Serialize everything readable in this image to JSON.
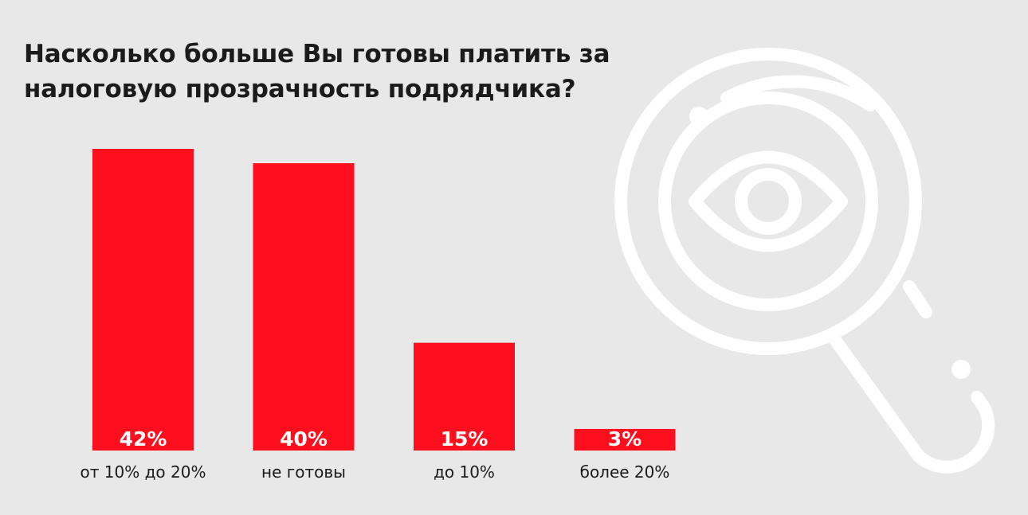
{
  "chart_data": {
    "type": "bar",
    "title": "Насколько больше Вы готовы платить за налоговую прозрачность подрядчика?",
    "categories": [
      "от 10% до 20%",
      "не готовы",
      "до 10%",
      "более 20%"
    ],
    "values": [
      42,
      40,
      15,
      3
    ],
    "value_labels": [
      "42%",
      "40%",
      "15%",
      "3%"
    ],
    "unit": "%",
    "xlabel": "",
    "ylabel": "",
    "ylim": [
      0,
      42
    ],
    "grid": false,
    "legend": "none",
    "colors": {
      "bar": "#ff0f1e",
      "background": "#e8e8e8",
      "text": "#1b1b1b",
      "value_text": "#ffffff",
      "decoration": "#ffffff"
    }
  },
  "decoration": {
    "icon": "magnifier-eye-icon"
  }
}
